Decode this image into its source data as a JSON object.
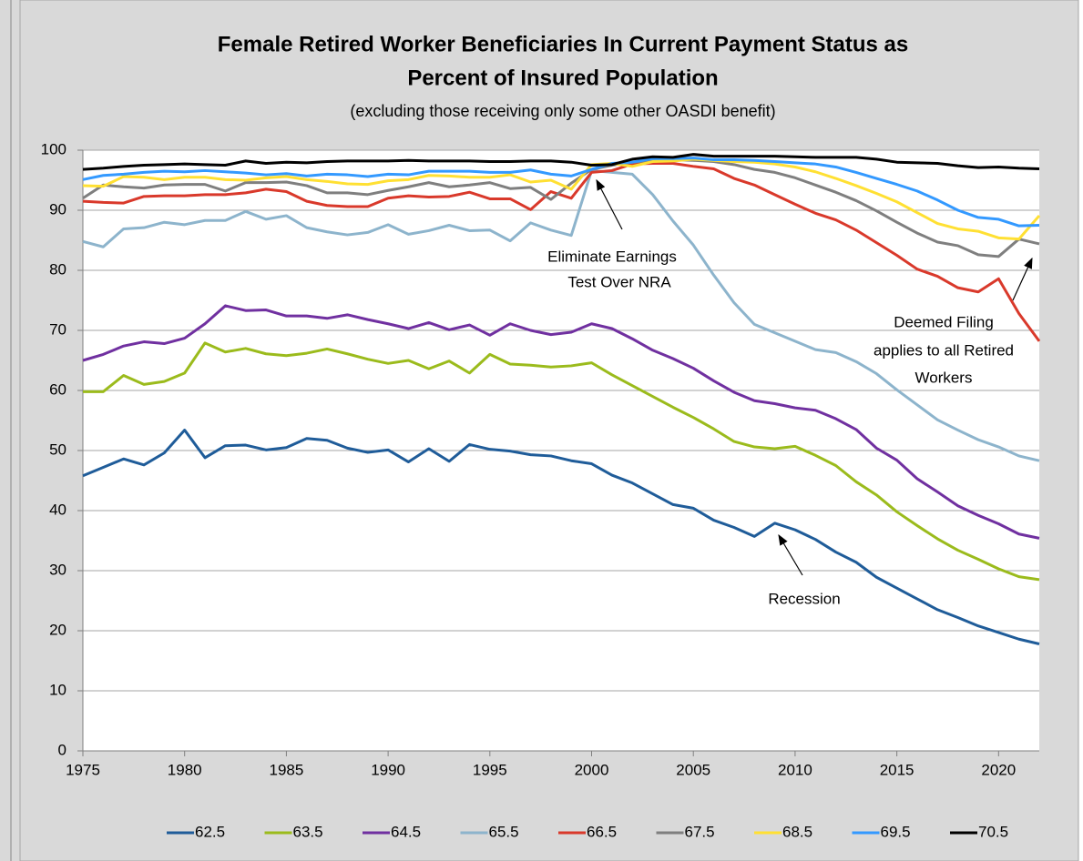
{
  "chart_data": {
    "type": "line",
    "title": [
      "Female Retired Worker Beneficiaries In Current Payment Status as",
      "Percent of Insured Population"
    ],
    "subtitle": "(excluding those receiving only some other OASDI benefit)",
    "x": [
      1975,
      1976,
      1977,
      1978,
      1979,
      1980,
      1981,
      1982,
      1983,
      1984,
      1985,
      1986,
      1987,
      1988,
      1989,
      1990,
      1991,
      1992,
      1993,
      1994,
      1995,
      1996,
      1997,
      1998,
      1999,
      2000,
      2001,
      2002,
      2003,
      2004,
      2005,
      2006,
      2007,
      2008,
      2009,
      2010,
      2011,
      2012,
      2013,
      2014,
      2015,
      2016,
      2017,
      2018,
      2019,
      2020,
      2021,
      2022
    ],
    "xlim": [
      1975,
      2022
    ],
    "xticks": [
      1975,
      1980,
      1985,
      1990,
      1995,
      2000,
      2005,
      2010,
      2015,
      2020
    ],
    "ylim": [
      0,
      100
    ],
    "yticks": [
      0,
      10,
      20,
      30,
      40,
      50,
      60,
      70,
      80,
      90,
      100
    ],
    "grid": true,
    "legend": "bottom",
    "series": [
      {
        "name": "62.5",
        "color": "#1f5c99",
        "values": [
          45.8,
          47.2,
          48.6,
          47.6,
          49.6,
          53.4,
          48.8,
          50.8,
          50.9,
          50.1,
          50.5,
          52.0,
          51.7,
          50.4,
          49.7,
          50.1,
          48.1,
          50.3,
          48.2,
          51.0,
          50.2,
          49.9,
          49.3,
          49.1,
          48.3,
          47.8,
          45.9,
          44.6,
          42.8,
          41.0,
          40.4,
          38.4,
          37.2,
          35.7,
          37.9,
          36.8,
          35.2,
          33.1,
          31.4,
          28.9,
          27.1,
          25.3,
          23.5,
          22.2,
          20.8,
          19.7,
          18.6,
          17.8
        ]
      },
      {
        "name": "63.5",
        "color": "#9bbb1c",
        "values": [
          59.8,
          59.8,
          62.5,
          61.0,
          61.5,
          62.9,
          67.9,
          66.4,
          67.0,
          66.1,
          65.8,
          66.2,
          66.9,
          66.1,
          65.2,
          64.5,
          65.0,
          63.6,
          64.9,
          62.9,
          66.0,
          64.4,
          64.2,
          63.9,
          64.1,
          64.6,
          62.6,
          60.8,
          59.0,
          57.2,
          55.5,
          53.6,
          51.5,
          50.6,
          50.3,
          50.7,
          49.2,
          47.5,
          44.8,
          42.6,
          39.8,
          37.5,
          35.3,
          33.4,
          31.9,
          30.3,
          29.0,
          28.5
        ]
      },
      {
        "name": "64.5",
        "color": "#7030a0",
        "values": [
          65.0,
          66.0,
          67.4,
          68.1,
          67.8,
          68.7,
          71.1,
          74.1,
          73.3,
          73.4,
          72.4,
          72.4,
          72.0,
          72.6,
          71.8,
          71.1,
          70.3,
          71.3,
          70.1,
          70.9,
          69.2,
          71.1,
          70.0,
          69.3,
          69.7,
          71.1,
          70.3,
          68.6,
          66.7,
          65.3,
          63.7,
          61.6,
          59.7,
          58.3,
          57.8,
          57.1,
          56.7,
          55.3,
          53.5,
          50.4,
          48.4,
          45.3,
          43.1,
          40.8,
          39.2,
          37.8,
          36.1,
          35.4
        ]
      },
      {
        "name": "65.5",
        "color": "#8db4cc",
        "values": [
          84.8,
          83.9,
          86.9,
          87.1,
          88.0,
          87.6,
          88.3,
          88.3,
          89.8,
          88.5,
          89.1,
          87.1,
          86.4,
          85.9,
          86.3,
          87.6,
          86.0,
          86.6,
          87.5,
          86.6,
          86.7,
          84.9,
          87.9,
          86.7,
          85.8,
          96.6,
          96.3,
          96.0,
          92.6,
          88.2,
          84.2,
          79.2,
          74.6,
          71.0,
          69.6,
          68.2,
          66.8,
          66.3,
          64.8,
          62.8,
          60.1,
          57.6,
          55.1,
          53.4,
          51.8,
          50.6,
          49.1,
          48.3
        ]
      },
      {
        "name": "66.5",
        "color": "#d9392b",
        "values": [
          91.5,
          91.3,
          91.2,
          92.3,
          92.4,
          92.4,
          92.6,
          92.6,
          92.9,
          93.5,
          93.1,
          91.5,
          90.8,
          90.6,
          90.6,
          92.0,
          92.4,
          92.2,
          92.3,
          93.0,
          91.9,
          91.9,
          90.1,
          93.1,
          92.0,
          96.3,
          96.6,
          97.7,
          97.8,
          97.8,
          97.3,
          96.9,
          95.3,
          94.2,
          92.6,
          91.0,
          89.5,
          88.4,
          86.7,
          84.6,
          82.5,
          80.2,
          79.0,
          77.1,
          76.4,
          78.6,
          72.8,
          68.2
        ]
      },
      {
        "name": "67.5",
        "color": "#7f7f7f",
        "values": [
          92.0,
          94.2,
          93.9,
          93.7,
          94.2,
          94.3,
          94.3,
          93.2,
          94.6,
          94.6,
          94.7,
          94.1,
          92.9,
          92.9,
          92.6,
          93.3,
          93.9,
          94.6,
          93.9,
          94.2,
          94.6,
          93.6,
          93.8,
          91.8,
          94.5,
          96.8,
          97.5,
          98.0,
          98.3,
          98.4,
          98.3,
          98.1,
          97.6,
          96.8,
          96.3,
          95.4,
          94.2,
          93.0,
          91.6,
          89.9,
          88.0,
          86.2,
          84.7,
          84.1,
          82.6,
          82.3,
          85.2,
          84.4
        ]
      },
      {
        "name": "68.5",
        "color": "#ffe033",
        "values": [
          94.1,
          94.0,
          95.6,
          95.5,
          95.1,
          95.5,
          95.5,
          95.1,
          95.0,
          95.4,
          95.6,
          95.1,
          94.8,
          94.4,
          94.3,
          94.9,
          95.1,
          95.8,
          95.7,
          95.5,
          95.5,
          95.9,
          94.7,
          95.0,
          93.5,
          97.6,
          97.8,
          97.3,
          98.1,
          98.2,
          98.5,
          98.3,
          98.1,
          98.0,
          97.7,
          97.2,
          96.4,
          95.3,
          94.1,
          92.8,
          91.4,
          89.6,
          87.8,
          86.9,
          86.5,
          85.4,
          85.2,
          89.1
        ]
      },
      {
        "name": "69.5",
        "color": "#3399ff",
        "values": [
          95.1,
          95.8,
          96.0,
          96.3,
          96.5,
          96.4,
          96.6,
          96.4,
          96.2,
          95.9,
          96.1,
          95.7,
          96.0,
          95.9,
          95.6,
          96.0,
          95.9,
          96.5,
          96.5,
          96.5,
          96.3,
          96.3,
          96.7,
          96.0,
          95.7,
          96.8,
          97.8,
          98.0,
          98.6,
          98.6,
          98.7,
          98.4,
          98.4,
          98.3,
          98.1,
          97.9,
          97.7,
          97.2,
          96.3,
          95.3,
          94.3,
          93.2,
          91.7,
          90.0,
          88.8,
          88.5,
          87.4,
          87.5
        ]
      },
      {
        "name": "70.5",
        "color": "#000000",
        "values": [
          96.8,
          97.0,
          97.3,
          97.5,
          97.6,
          97.7,
          97.6,
          97.5,
          98.2,
          97.8,
          98.0,
          97.9,
          98.1,
          98.2,
          98.2,
          98.2,
          98.3,
          98.2,
          98.2,
          98.2,
          98.1,
          98.1,
          98.2,
          98.2,
          98.0,
          97.5,
          97.6,
          98.5,
          98.9,
          98.8,
          99.3,
          99.0,
          99.0,
          99.0,
          99.0,
          98.9,
          98.8,
          98.8,
          98.8,
          98.5,
          98.0,
          97.9,
          97.8,
          97.4,
          97.1,
          97.2,
          97.0,
          96.9
        ]
      }
    ],
    "annotations": [
      {
        "text": [
          "Eliminate Earnings",
          "Test Over NRA"
        ]
      },
      {
        "text": [
          "Deemed Filing",
          "applies to all Retired",
          "Workers"
        ]
      },
      {
        "text": [
          "Recession"
        ]
      }
    ]
  }
}
